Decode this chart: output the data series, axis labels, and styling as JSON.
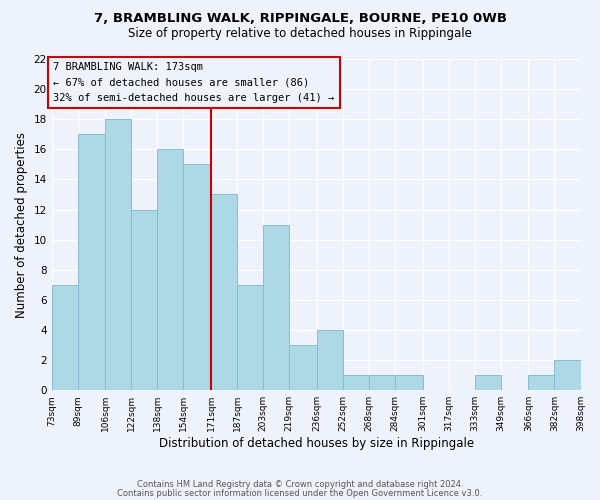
{
  "title": "7, BRAMBLING WALK, RIPPINGALE, BOURNE, PE10 0WB",
  "subtitle": "Size of property relative to detached houses in Rippingale",
  "xlabel": "Distribution of detached houses by size in Rippingale",
  "ylabel": "Number of detached properties",
  "bin_edges": [
    73,
    89,
    106,
    122,
    138,
    154,
    171,
    187,
    203,
    219,
    236,
    252,
    268,
    284,
    301,
    317,
    333,
    349,
    366,
    382,
    398
  ],
  "counts": [
    7,
    17,
    18,
    12,
    16,
    15,
    13,
    7,
    11,
    3,
    4,
    1,
    1,
    1,
    0,
    0,
    1,
    0,
    1,
    2
  ],
  "bar_color": "#add8e6",
  "bar_edge_color": "#89bdd3",
  "vline_x": 171,
  "vline_color": "#cc0000",
  "ylim": [
    0,
    22
  ],
  "yticks": [
    0,
    2,
    4,
    6,
    8,
    10,
    12,
    14,
    16,
    18,
    20,
    22
  ],
  "annotation_title": "7 BRAMBLING WALK: 173sqm",
  "annotation_line1": "← 67% of detached houses are smaller (86)",
  "annotation_line2": "32% of semi-detached houses are larger (41) →",
  "annotation_box_edge_color": "#cc0000",
  "footer_line1": "Contains HM Land Registry data © Crown copyright and database right 2024.",
  "footer_line2": "Contains public sector information licensed under the Open Government Licence v3.0.",
  "background_color": "#eef2fb",
  "tick_labels": [
    "73sqm",
    "89sqm",
    "106sqm",
    "122sqm",
    "138sqm",
    "154sqm",
    "171sqm",
    "187sqm",
    "203sqm",
    "219sqm",
    "236sqm",
    "252sqm",
    "268sqm",
    "284sqm",
    "301sqm",
    "317sqm",
    "333sqm",
    "349sqm",
    "366sqm",
    "382sqm",
    "398sqm"
  ]
}
